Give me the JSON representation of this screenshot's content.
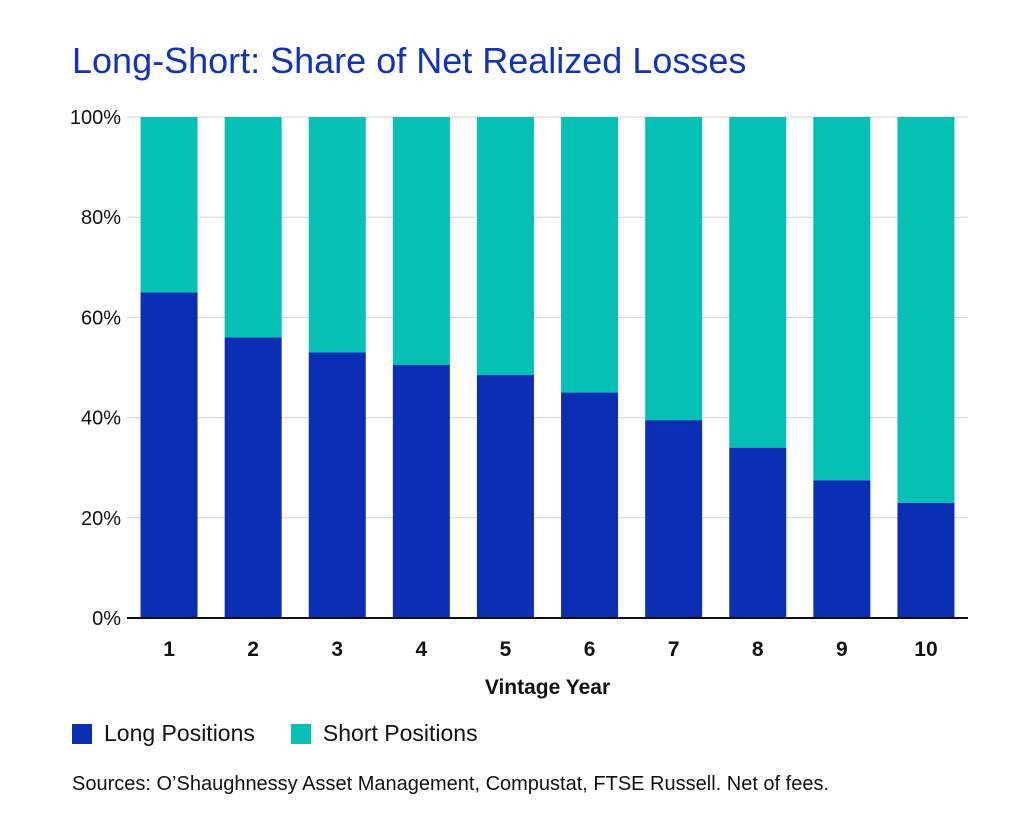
{
  "chart_data": {
    "type": "bar",
    "stacked": true,
    "title": "Long-Short: Share of Net Realized Losses",
    "xlabel": "Vintage Year",
    "ylabel": "",
    "ylim": [
      0,
      100
    ],
    "yticks": [
      "0%",
      "20%",
      "40%",
      "60%",
      "80%",
      "100%"
    ],
    "categories": [
      "1",
      "2",
      "3",
      "4",
      "5",
      "6",
      "7",
      "8",
      "9",
      "10"
    ],
    "series": [
      {
        "name": "Long Positions",
        "color": "#0a2fb5",
        "values": [
          65,
          56,
          53,
          50.5,
          48.5,
          45,
          39.5,
          34,
          27.5,
          23
        ]
      },
      {
        "name": "Short Positions",
        "color": "#05c0b4",
        "values": [
          35,
          44,
          47,
          49.5,
          51.5,
          55,
          60.5,
          66,
          72.5,
          77
        ]
      }
    ],
    "legend": "bottom-left",
    "grid": true,
    "source": "Sources: O’Shaughnessy Asset Management, Compustat, FTSE Russell. Net of fees."
  }
}
